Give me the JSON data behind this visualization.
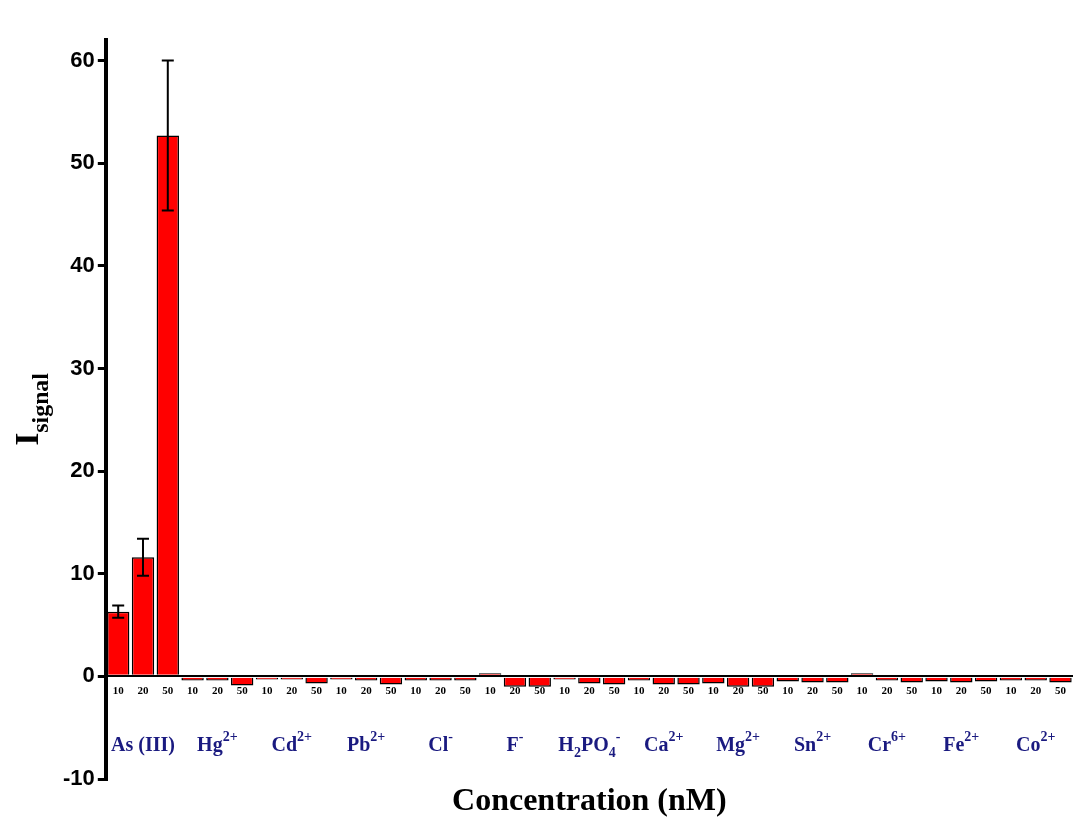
{
  "chart_data": {
    "type": "bar",
    "xlabel": "Concentration (nM)",
    "ylabel": "I$_{signal}$",
    "categories": [
      "10",
      "20",
      "50",
      "10",
      "20",
      "50",
      "10",
      "20",
      "50",
      "10",
      "20",
      "50",
      "10",
      "20",
      "50",
      "10",
      "20",
      "50",
      "10",
      "20",
      "50",
      "10",
      "20",
      "50",
      "10",
      "20",
      "50",
      "10",
      "20",
      "50",
      "10",
      "20",
      "50",
      "10",
      "20",
      "50",
      "10",
      "20",
      "50"
    ],
    "series": [
      {
        "color": "#ff0000",
        "values": [
          6.3,
          11.6,
          52.7,
          -0.4,
          -0.4,
          -0.9,
          -0.3,
          -0.3,
          -0.7,
          -0.3,
          -0.4,
          -0.8,
          -0.4,
          -0.4,
          -0.4,
          0.3,
          -1.0,
          -1.0,
          -0.3,
          -0.7,
          -0.8,
          -0.4,
          -0.8,
          -0.8,
          -0.7,
          -1.0,
          -1.0,
          -0.5,
          -0.6,
          -0.6,
          0.3,
          -0.4,
          -0.6,
          -0.5,
          -0.6,
          -0.5,
          -0.4,
          -0.4,
          -0.6
        ],
        "errors": [
          0.6,
          1.8,
          7.3,
          null,
          null,
          null,
          null,
          null,
          null,
          null,
          null,
          null,
          null,
          null,
          null,
          null,
          null,
          null,
          null,
          null,
          null,
          null,
          null,
          null,
          null,
          null,
          null,
          null,
          null,
          null,
          null,
          null,
          null,
          null,
          null,
          null,
          null,
          null,
          null
        ]
      }
    ],
    "annotations": [
      "As (III)",
      "Hg$^{2+}$",
      "Cd$^{2+}$",
      "Pb$^{2+}$",
      "Cl$^{-}$",
      "F$^{-}$",
      "H$_{2}$PO$_{4}$$^{-}$",
      "Ca$^{2+}$",
      "Mg$^{2+}$",
      "Sn$^{2+}$",
      "Cr$^{6+}$",
      "Fe$^{2+}$",
      "Co$^{2+}$"
    ],
    "ylim": [
      -10,
      62
    ],
    "yticks": [
      -10,
      0,
      10,
      20,
      30,
      40,
      50,
      60
    ],
    "grid": false,
    "legend": false
  }
}
